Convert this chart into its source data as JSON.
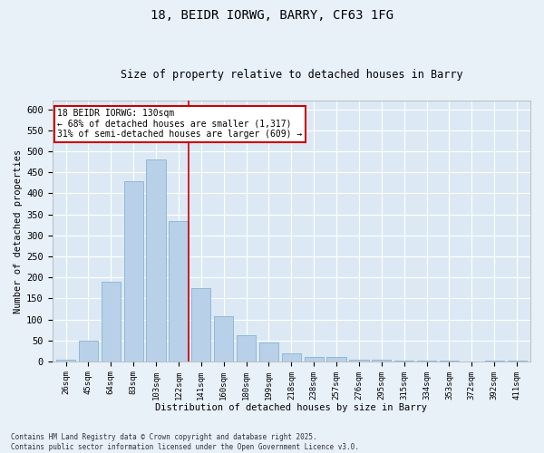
{
  "title1": "18, BEIDR IORWG, BARRY, CF63 1FG",
  "title2": "Size of property relative to detached houses in Barry",
  "xlabel": "Distribution of detached houses by size in Barry",
  "ylabel": "Number of detached properties",
  "categories": [
    "26sqm",
    "45sqm",
    "64sqm",
    "83sqm",
    "103sqm",
    "122sqm",
    "141sqm",
    "160sqm",
    "180sqm",
    "199sqm",
    "218sqm",
    "238sqm",
    "257sqm",
    "276sqm",
    "295sqm",
    "315sqm",
    "334sqm",
    "353sqm",
    "372sqm",
    "392sqm",
    "411sqm"
  ],
  "values": [
    3,
    50,
    190,
    430,
    480,
    335,
    175,
    108,
    62,
    45,
    20,
    10,
    10,
    5,
    4,
    2,
    1,
    1,
    0,
    1,
    2
  ],
  "bar_color": "#b8d0e8",
  "bar_edge_color": "#7aaac8",
  "vline_color": "#cc0000",
  "vline_pos": 5.43,
  "ylim": [
    0,
    620
  ],
  "yticks": [
    0,
    50,
    100,
    150,
    200,
    250,
    300,
    350,
    400,
    450,
    500,
    550,
    600
  ],
  "annotation_title": "18 BEIDR IORWG: 130sqm",
  "annotation_line1": "← 68% of detached houses are smaller (1,317)",
  "annotation_line2": "31% of semi-detached houses are larger (609) →",
  "annotation_box_color": "#ffffff",
  "annotation_border_color": "#cc0000",
  "footnote1": "Contains HM Land Registry data © Crown copyright and database right 2025.",
  "footnote2": "Contains public sector information licensed under the Open Government Licence v3.0.",
  "plot_bg_color": "#dce9f5",
  "fig_bg_color": "#e8f0f8"
}
